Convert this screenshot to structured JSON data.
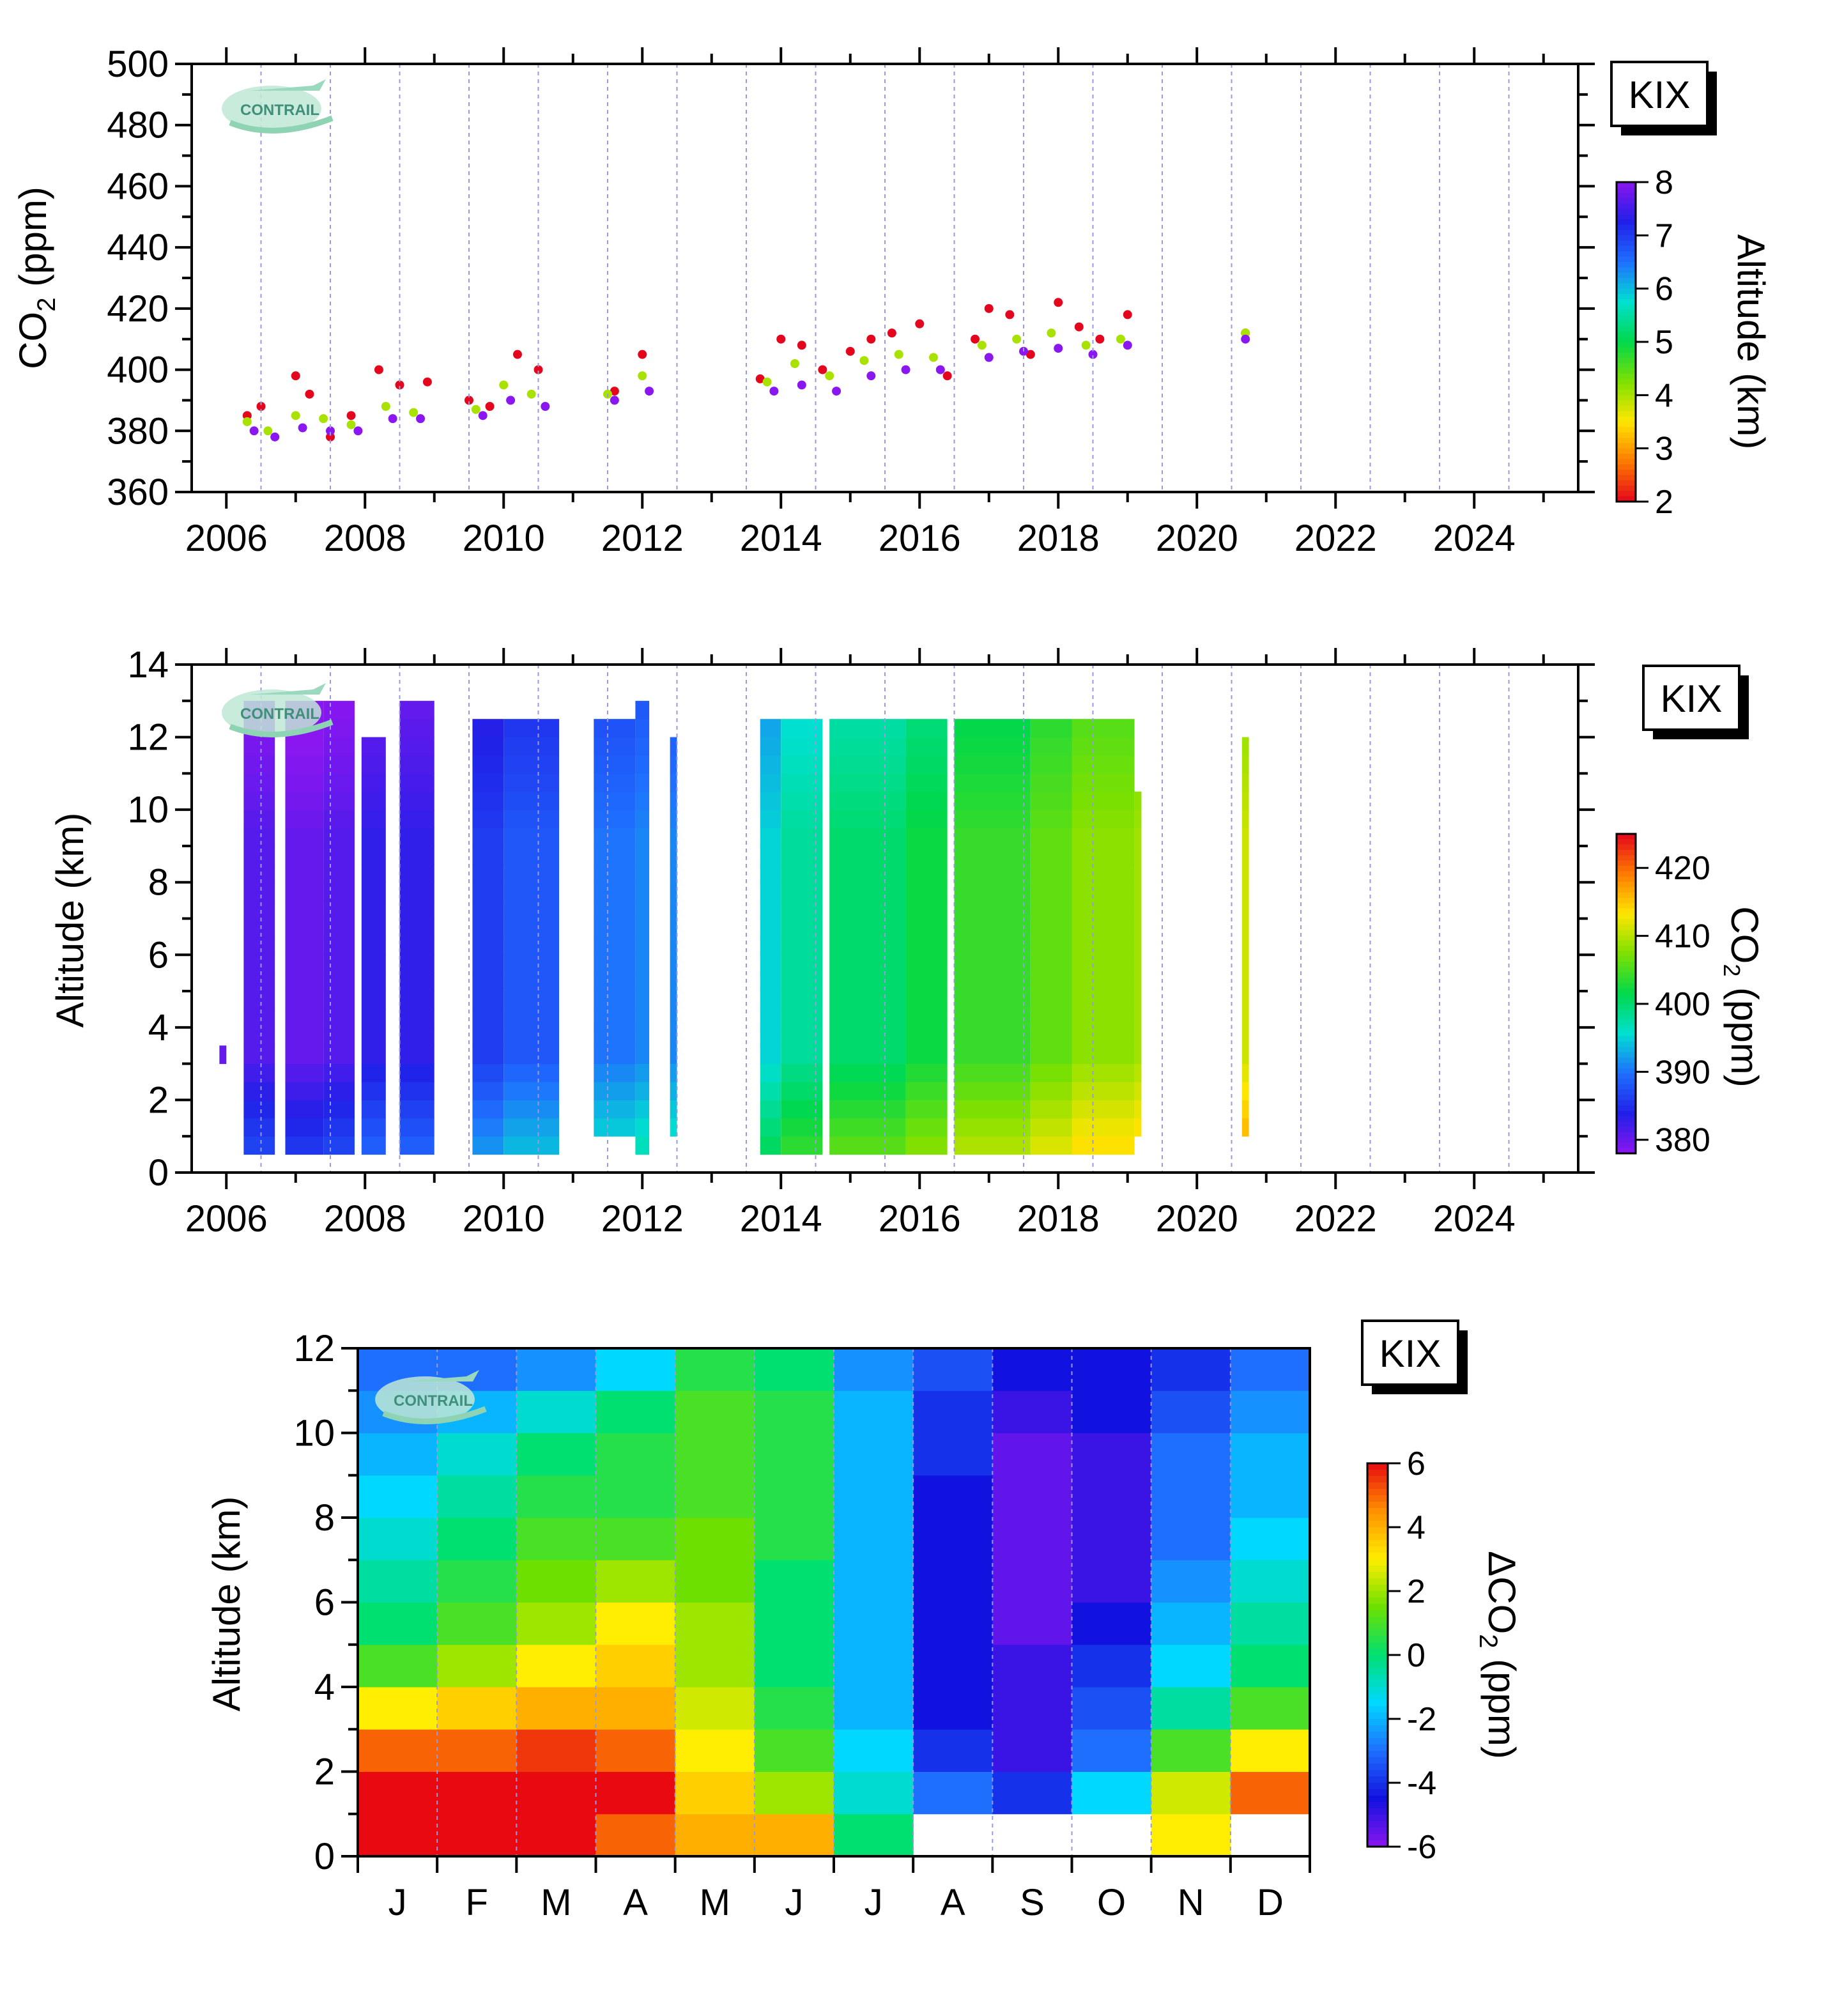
{
  "station_label": "KIX",
  "logo_text": "CONTRAIL",
  "colors": {
    "rainbow": [
      "#e4061c",
      "#ff7a00",
      "#ffe600",
      "#7ee000",
      "#00d84a",
      "#00e0d0",
      "#1f6fff",
      "#2020e8",
      "#8a16f0"
    ],
    "anomaly": [
      "#8a16f0",
      "#1212e0",
      "#1f6fff",
      "#00d8ff",
      "#00e070",
      "#6ee000",
      "#ffee00",
      "#ff9000",
      "#e80a10"
    ],
    "grid": "#9999dd"
  },
  "chart_data": [
    {
      "type": "scatter",
      "title": "",
      "xlabel": "",
      "ylabel": "CO2 (ppm)",
      "xlim": [
        2005.5,
        2025.5
      ],
      "ylim": [
        360,
        500
      ],
      "x_ticks": [
        "2006",
        "2008",
        "2010",
        "2012",
        "2014",
        "2016",
        "2018",
        "2020",
        "2022",
        "2024"
      ],
      "y_ticks": [
        "360",
        "380",
        "400",
        "420",
        "440",
        "460",
        "480",
        "500"
      ],
      "colorbar": {
        "label": "Altitude (km)",
        "ticks": [
          "2",
          "3",
          "4",
          "5",
          "6",
          "7",
          "8"
        ],
        "range": [
          2,
          8
        ]
      },
      "series": [
        {
          "altitude_km": 2,
          "x": [
            2006.3,
            2006.5,
            2007.0,
            2007.2,
            2007.5,
            2007.8,
            2008.2,
            2008.5,
            2008.9,
            2009.5,
            2009.8,
            2010.2,
            2010.5,
            2011.6,
            2012.0,
            2013.7,
            2014.0,
            2014.3,
            2014.6,
            2015.0,
            2015.3,
            2015.6,
            2016.0,
            2016.4,
            2016.8,
            2017.0,
            2017.3,
            2017.6,
            2018.0,
            2018.3,
            2018.6,
            2019.0,
            2020.7
          ],
          "y": [
            385,
            388,
            398,
            392,
            378,
            385,
            400,
            395,
            396,
            390,
            388,
            405,
            400,
            393,
            405,
            397,
            410,
            408,
            400,
            406,
            410,
            412,
            415,
            398,
            410,
            420,
            418,
            405,
            422,
            414,
            410,
            418,
            412
          ]
        },
        {
          "altitude_km": 4,
          "x": [
            2006.3,
            2006.6,
            2007.0,
            2007.4,
            2007.8,
            2008.3,
            2008.7,
            2009.6,
            2010.0,
            2010.4,
            2011.5,
            2012.0,
            2013.8,
            2014.2,
            2014.7,
            2015.2,
            2015.7,
            2016.2,
            2016.9,
            2017.4,
            2017.9,
            2018.4,
            2018.9,
            2020.7
          ],
          "y": [
            383,
            380,
            385,
            384,
            382,
            388,
            386,
            387,
            395,
            392,
            392,
            398,
            396,
            402,
            398,
            403,
            405,
            404,
            408,
            410,
            412,
            408,
            410,
            412
          ]
        },
        {
          "altitude_km": 8,
          "x": [
            2006.4,
            2006.7,
            2007.1,
            2007.5,
            2007.9,
            2008.4,
            2008.8,
            2009.7,
            2010.1,
            2010.6,
            2011.6,
            2012.1,
            2013.9,
            2014.3,
            2014.8,
            2015.3,
            2015.8,
            2016.3,
            2017.0,
            2017.5,
            2018.0,
            2018.5,
            2019.0,
            2020.7
          ],
          "y": [
            380,
            378,
            381,
            380,
            380,
            384,
            384,
            385,
            390,
            388,
            390,
            393,
            393,
            395,
            393,
            398,
            400,
            400,
            404,
            406,
            407,
            405,
            408,
            410
          ]
        }
      ]
    },
    {
      "type": "heatmap",
      "title": "",
      "xlabel": "",
      "ylabel": "Altitude (km)",
      "xlim": [
        2005.5,
        2025.5
      ],
      "ylim": [
        0,
        14
      ],
      "x_ticks": [
        "2006",
        "2008",
        "2010",
        "2012",
        "2014",
        "2016",
        "2018",
        "2020",
        "2022",
        "2024"
      ],
      "y_ticks": [
        "0",
        "2",
        "4",
        "6",
        "8",
        "10",
        "12",
        "14"
      ],
      "colorbar": {
        "label": "CO2 (ppm)",
        "ticks": [
          "380",
          "390",
          "400",
          "410",
          "420"
        ],
        "range": [
          378,
          425
        ]
      },
      "columns": [
        {
          "x_start": 2005.9,
          "x_end": 2006.0,
          "alt_min": 3.0,
          "alt_max": 3.5,
          "co2": 380
        },
        {
          "x_start": 2006.25,
          "x_end": 2006.7,
          "alt_min": 0.5,
          "alt_max": 13.0,
          "co2": 381
        },
        {
          "x_start": 2006.85,
          "x_end": 2007.4,
          "alt_min": 0.5,
          "alt_max": 13.0,
          "co2": 380
        },
        {
          "x_start": 2007.4,
          "x_end": 2007.85,
          "alt_min": 0.5,
          "alt_max": 13.0,
          "co2": 381
        },
        {
          "x_start": 2007.95,
          "x_end": 2008.3,
          "alt_min": 0.5,
          "alt_max": 12.0,
          "co2": 383
        },
        {
          "x_start": 2008.5,
          "x_end": 2009.0,
          "alt_min": 0.5,
          "alt_max": 13.0,
          "co2": 383
        },
        {
          "x_start": 2009.55,
          "x_end": 2010.0,
          "alt_min": 0.5,
          "alt_max": 12.5,
          "co2": 386
        },
        {
          "x_start": 2010.0,
          "x_end": 2010.8,
          "alt_min": 0.5,
          "alt_max": 12.5,
          "co2": 388
        },
        {
          "x_start": 2011.3,
          "x_end": 2011.9,
          "alt_min": 1.0,
          "alt_max": 12.5,
          "co2": 390
        },
        {
          "x_start": 2011.9,
          "x_end": 2012.1,
          "alt_min": 0.5,
          "alt_max": 13.0,
          "co2": 391
        },
        {
          "x_start": 2012.4,
          "x_end": 2012.5,
          "alt_min": 1.0,
          "alt_max": 12.0,
          "co2": 391
        },
        {
          "x_start": 2013.7,
          "x_end": 2014.0,
          "alt_min": 0.5,
          "alt_max": 12.5,
          "co2": 395
        },
        {
          "x_start": 2014.0,
          "x_end": 2014.6,
          "alt_min": 0.5,
          "alt_max": 12.5,
          "co2": 398
        },
        {
          "x_start": 2014.7,
          "x_end": 2015.8,
          "alt_min": 0.5,
          "alt_max": 12.5,
          "co2": 400
        },
        {
          "x_start": 2015.8,
          "x_end": 2016.4,
          "alt_min": 0.5,
          "alt_max": 12.5,
          "co2": 402
        },
        {
          "x_start": 2016.5,
          "x_end": 2017.6,
          "alt_min": 0.5,
          "alt_max": 12.5,
          "co2": 404
        },
        {
          "x_start": 2017.6,
          "x_end": 2018.2,
          "alt_min": 0.5,
          "alt_max": 12.5,
          "co2": 406
        },
        {
          "x_start": 2018.2,
          "x_end": 2019.1,
          "alt_min": 0.5,
          "alt_max": 12.5,
          "co2": 408
        },
        {
          "x_start": 2019.1,
          "x_end": 2019.2,
          "alt_min": 1.0,
          "alt_max": 10.5,
          "co2": 409
        },
        {
          "x_start": 2020.65,
          "x_end": 2020.75,
          "alt_min": 1.0,
          "alt_max": 12.0,
          "co2": 411
        }
      ]
    },
    {
      "type": "heatmap",
      "title": "",
      "xlabel": "",
      "ylabel": "Altitude (km)",
      "x_categories": [
        "J",
        "F",
        "M",
        "A",
        "M",
        "J",
        "J",
        "A",
        "S",
        "O",
        "N",
        "D"
      ],
      "ylim": [
        0,
        12
      ],
      "y_ticks": [
        "0",
        "2",
        "4",
        "6",
        "8",
        "10",
        "12"
      ],
      "colorbar": {
        "label": "ΔCO2 (ppm)",
        "ticks": [
          "-6",
          "-4",
          "-2",
          "0",
          "2",
          "4",
          "6"
        ],
        "range": [
          -6,
          6
        ]
      },
      "altitude_bins_km": [
        0,
        1,
        2,
        3,
        4,
        5,
        6,
        7,
        8,
        9,
        10,
        11
      ],
      "months": [
        {
          "month": "J",
          "delta_by_alt": [
            6,
            6,
            5,
            3,
            1,
            0,
            -0.5,
            -1,
            -1.5,
            -2,
            -2.5,
            -3
          ]
        },
        {
          "month": "F",
          "delta_by_alt": [
            6,
            6,
            5,
            3.5,
            2,
            1,
            0.5,
            0,
            -0.5,
            -1,
            -2,
            -3
          ]
        },
        {
          "month": "M",
          "delta_by_alt": [
            6,
            6,
            5.5,
            4,
            3,
            2,
            1.5,
            1,
            0.5,
            0,
            -1,
            -2.5
          ]
        },
        {
          "month": "A",
          "delta_by_alt": [
            5,
            6,
            5,
            4,
            3.5,
            3,
            2,
            1,
            0.5,
            0.5,
            0,
            -1.5
          ]
        },
        {
          "month": "M",
          "delta_by_alt": [
            4,
            3.5,
            3,
            2.5,
            2,
            2,
            1.5,
            1.5,
            1,
            1,
            1,
            0.5
          ]
        },
        {
          "month": "J",
          "delta_by_alt": [
            4,
            2,
            1,
            0.5,
            0,
            0,
            0,
            0.5,
            0.5,
            0.5,
            0.5,
            0
          ]
        },
        {
          "month": "J",
          "delta_by_alt": [
            0,
            -1,
            -1.5,
            -2,
            -2,
            -2,
            -2,
            -2,
            -2,
            -2,
            -2,
            -2.5
          ]
        },
        {
          "month": "A",
          "delta_by_alt": [
            null,
            -3,
            -4,
            -4.5,
            -4.5,
            -4.5,
            -4.5,
            -4.5,
            -4.5,
            -4,
            -4,
            -3.5
          ]
        },
        {
          "month": "S",
          "delta_by_alt": [
            null,
            -4,
            -5,
            -5,
            -5,
            -5.5,
            -5.5,
            -5.5,
            -5.5,
            -5.5,
            -5,
            -4.5
          ]
        },
        {
          "month": "O",
          "delta_by_alt": [
            null,
            -1.5,
            -3,
            -3.5,
            -4,
            -4.5,
            -5,
            -5,
            -5,
            -5,
            -4.5,
            -4.5
          ]
        },
        {
          "month": "N",
          "delta_by_alt": [
            3,
            2.5,
            1,
            -0.5,
            -1.5,
            -2,
            -2.5,
            -3,
            -3,
            -3,
            -3.5,
            -4
          ]
        },
        {
          "month": "D",
          "delta_by_alt": [
            null,
            5,
            3,
            1,
            0,
            -0.5,
            -1,
            -1.5,
            -2,
            -2,
            -2.5,
            -3
          ]
        }
      ]
    }
  ]
}
